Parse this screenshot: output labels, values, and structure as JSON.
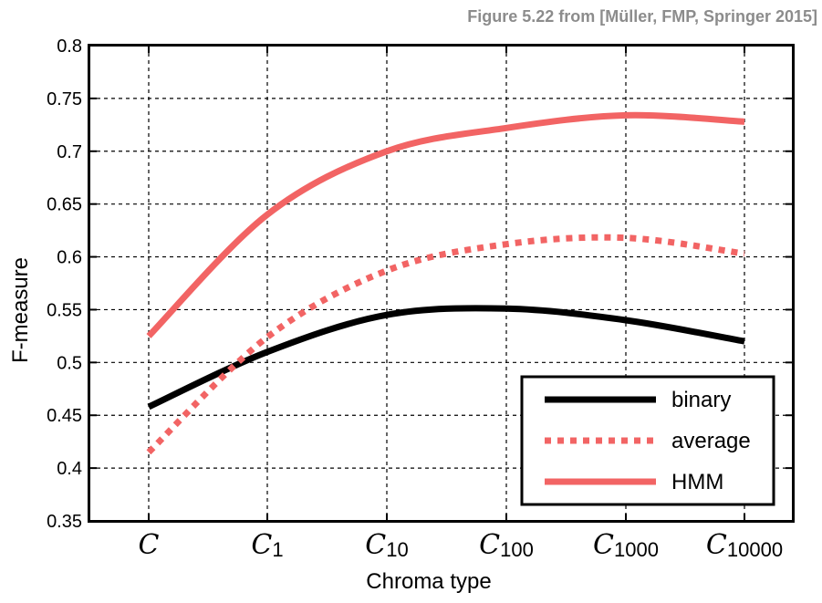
{
  "credit": "Figure 5.22 from [Müller, FMP, Springer 2015]",
  "chart_data": {
    "type": "line",
    "title": "",
    "xlabel": "Chroma type",
    "ylabel": "F-measure",
    "ylim": [
      0.35,
      0.8
    ],
    "yticks": [
      "0.35",
      "0.4",
      "0.45",
      "0.5",
      "0.55",
      "0.6",
      "0.65",
      "0.7",
      "0.75",
      "0.8"
    ],
    "categories": [
      {
        "base": "C",
        "sub": ""
      },
      {
        "base": "C",
        "sub": "1"
      },
      {
        "base": "C",
        "sub": "10"
      },
      {
        "base": "C",
        "sub": "100"
      },
      {
        "base": "C",
        "sub": "1000"
      },
      {
        "base": "C",
        "sub": "10000"
      }
    ],
    "grid": true,
    "legend_position": "bottom-right",
    "series": [
      {
        "name": "binary",
        "color": "#000000",
        "style": "solid",
        "values": [
          0.458,
          0.51,
          0.545,
          0.551,
          0.54,
          0.52
        ]
      },
      {
        "name": "average",
        "color": "#f26464",
        "style": "dotted",
        "values": [
          0.415,
          0.524,
          0.587,
          0.612,
          0.618,
          0.603
        ]
      },
      {
        "name": "HMM",
        "color": "#f26464",
        "style": "solid",
        "values": [
          0.525,
          0.64,
          0.7,
          0.722,
          0.734,
          0.728
        ]
      }
    ]
  }
}
